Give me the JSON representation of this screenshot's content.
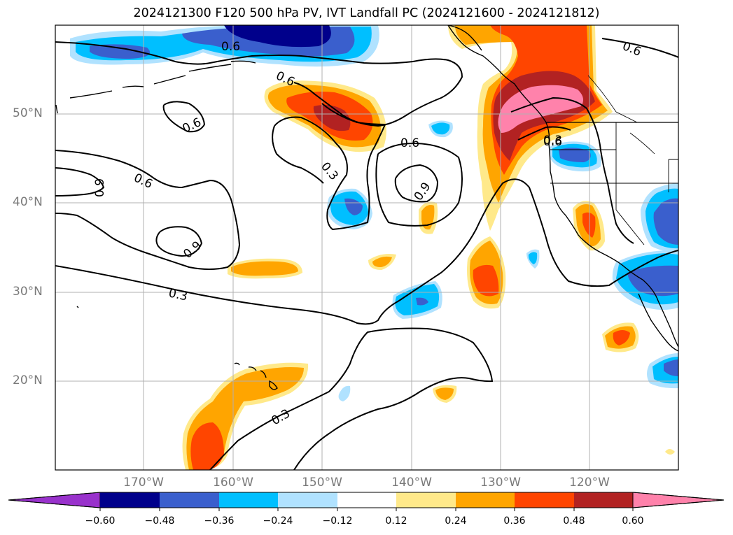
{
  "title": "2024121300 F120 500 hPa PV, IVT Landfall PC (2024121600 - 2024121812)",
  "axes": {
    "lat_labels": [
      "50°N",
      "40°N",
      "30°N",
      "20°N"
    ],
    "lon_labels": [
      "170°W",
      "160°W",
      "150°W",
      "140°W",
      "130°W",
      "120°W"
    ]
  },
  "contours": {
    "labels": [
      "0.6",
      "0.6",
      "0.6",
      "0.6",
      "0.6",
      "0.6",
      "0.3",
      "0.6",
      "0.9",
      "0.9",
      "0.9",
      "0.3",
      "0.3",
      "0.3"
    ]
  },
  "colorbar": {
    "ticks": [
      "−0.60",
      "−0.48",
      "−0.36",
      "−0.24",
      "−0.12",
      "0.12",
      "0.24",
      "0.36",
      "0.48",
      "0.60"
    ],
    "colors": [
      "#9932cc",
      "#00008b",
      "#3a5fcd",
      "#00bfff",
      "#b0e2ff",
      "#ffffff",
      "#ffe98a",
      "#ffa500",
      "#ff4500",
      "#b22222",
      "#ff82ab",
      "#ff82ab"
    ]
  },
  "shading_colors": {
    "neg_1": "#b0e2ff",
    "neg_2": "#00bfff",
    "neg_3": "#3a5fcd",
    "neg_4": "#00008b",
    "pos_1": "#ffe98a",
    "pos_2": "#ffa500",
    "pos_3": "#ff4500",
    "pos_4": "#b22222",
    "pos_5": "#ff82ab"
  }
}
